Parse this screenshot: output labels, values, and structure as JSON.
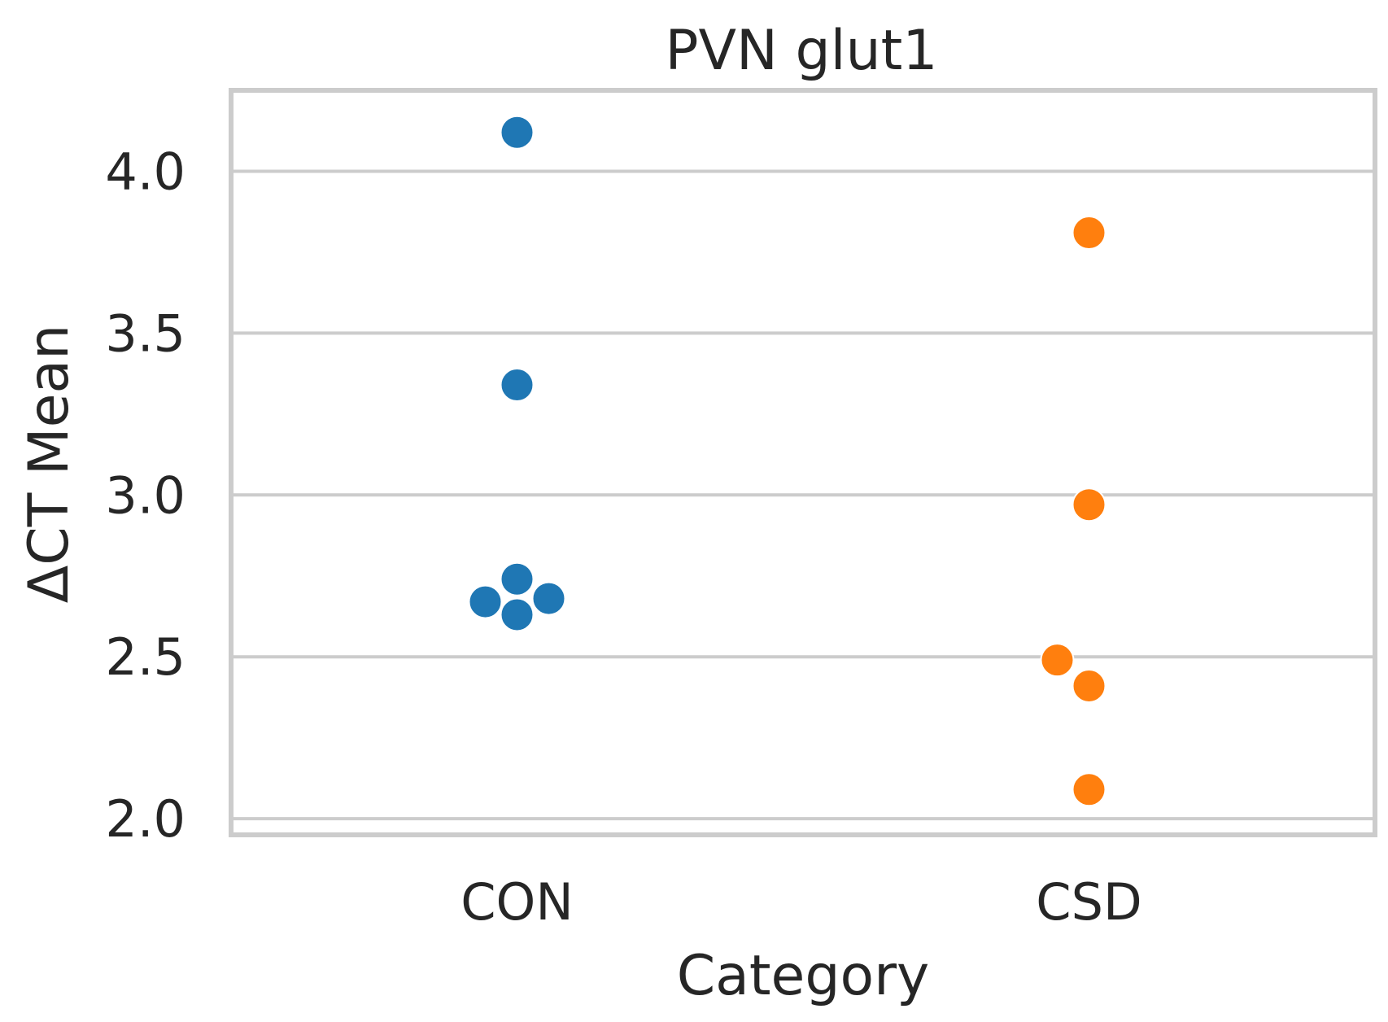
{
  "chart_data": {
    "type": "scatter",
    "subtype": "swarm",
    "title": "PVN glut1",
    "xlabel": "Category",
    "ylabel": "ΔCT Mean",
    "categories": [
      "CON",
      "CSD"
    ],
    "ylim": [
      1.95,
      4.25
    ],
    "yticks": [
      "2.0",
      "2.5",
      "3.0",
      "3.5",
      "4.0"
    ],
    "grid": true,
    "series": [
      {
        "category": "CON",
        "color": "#1f77b4",
        "values": [
          4.12,
          3.34,
          2.74,
          2.68,
          2.67,
          2.63
        ]
      },
      {
        "category": "CSD",
        "color": "#ff7f0e",
        "values": [
          3.81,
          2.97,
          2.49,
          2.41,
          2.09
        ]
      }
    ]
  }
}
